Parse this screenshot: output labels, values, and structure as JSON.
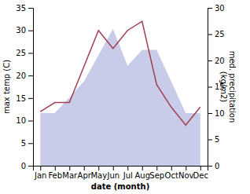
{
  "chart_data": {
    "type": "line",
    "xlabel": "date (month)",
    "ylabel": "max temp (C)",
    "y2label": "med. precipitation\n(kg/m2)",
    "categories": [
      "Jan",
      "Feb",
      "Mar",
      "Apr",
      "May",
      "Jun",
      "Jul",
      "Aug",
      "Sep",
      "Oct",
      "Nov",
      "Dec"
    ],
    "series": [
      {
        "type": "area",
        "color": "#c8cce8",
        "axis": "y2",
        "values": [
          10,
          10,
          13,
          16,
          21,
          26,
          19,
          22,
          22,
          16,
          10,
          10
        ]
      },
      {
        "type": "line",
        "color": "#a04050",
        "values": [
          12,
          14,
          14,
          22,
          30,
          26,
          30,
          32,
          18,
          13,
          9,
          13
        ]
      }
    ],
    "ylim": [
      0,
      35
    ],
    "yticks": [
      0,
      5,
      10,
      15,
      20,
      25,
      30,
      35
    ],
    "y2lim": [
      0,
      30
    ],
    "y2ticks": [
      0,
      5,
      10,
      15,
      20,
      25,
      30
    ]
  }
}
